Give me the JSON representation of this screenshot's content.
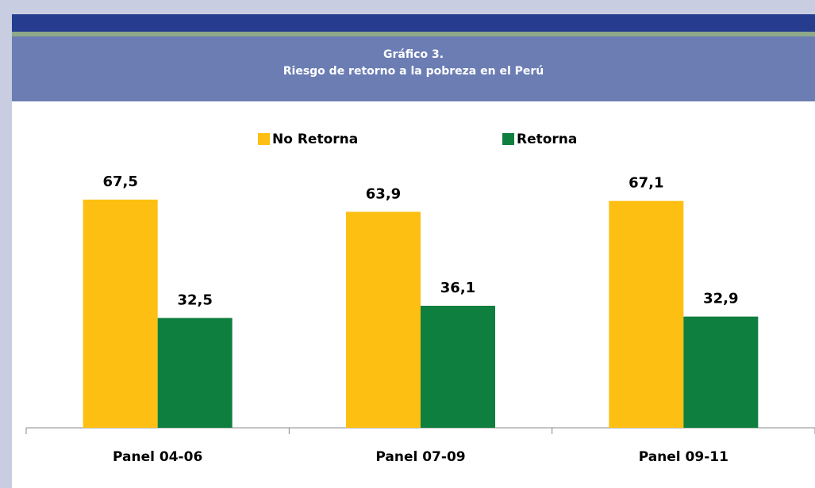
{
  "chart_data": {
    "type": "bar",
    "title": "Gráfico 3.",
    "subtitle": "Riesgo de retorno a la pobreza en el Perú",
    "categories": [
      "Panel 04-06",
      "Panel 07-09",
      "Panel 09-11"
    ],
    "series": [
      {
        "name": "No Retorna",
        "color": "#fdbf11",
        "values": [
          67.5,
          63.9,
          67.1
        ],
        "value_labels": [
          "67,5",
          "63,9",
          "67,1"
        ]
      },
      {
        "name": "Retorna",
        "color": "#0f7f3f",
        "values": [
          32.5,
          36.1,
          32.9
        ],
        "value_labels": [
          "32,5",
          "36,1",
          "32,9"
        ]
      }
    ],
    "legend": "top"
  }
}
